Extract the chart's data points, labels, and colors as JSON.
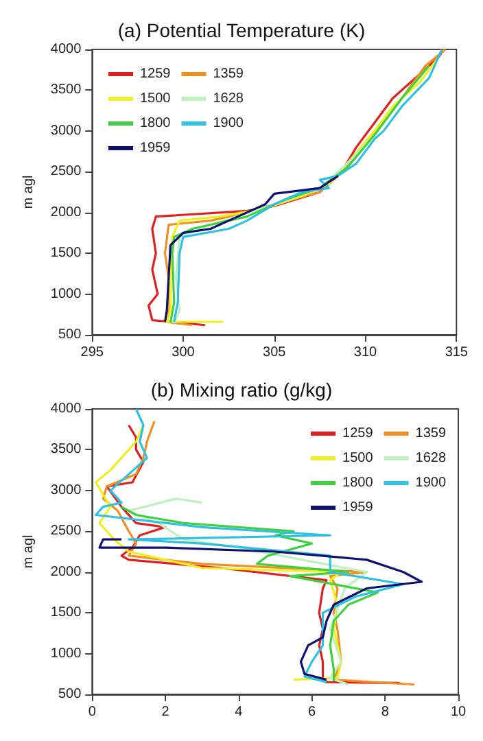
{
  "chart_data": [
    {
      "type": "line",
      "title": "(a) Potential Temperature (K)",
      "ylabel": "m agl",
      "xlim": [
        295,
        315
      ],
      "xticks": [
        295,
        300,
        305,
        310,
        315
      ],
      "ylim": [
        500,
        4000
      ],
      "yticks": [
        500,
        1000,
        1500,
        2000,
        2500,
        3000,
        3500,
        4000
      ],
      "grid": false,
      "legend": "top left",
      "series": [
        {
          "name": "1259",
          "color": "#e02020",
          "x": [
            301.2,
            298.3,
            298.1,
            298.6,
            298.3,
            298.5,
            298.3,
            298.5,
            303.5,
            305,
            307.5,
            308.7,
            309.5,
            310.5,
            311.5,
            313,
            314,
            314.3
          ],
          "values": [
            620,
            680,
            860,
            1000,
            1300,
            1500,
            1800,
            1950,
            2020,
            2080,
            2250,
            2500,
            2800,
            3100,
            3400,
            3700,
            3900,
            4000
          ]
        },
        {
          "name": "1359",
          "color": "#f09020",
          "x": [
            300.5,
            299,
            299.2,
            299.2,
            299,
            299.2,
            301.5,
            303.5,
            305,
            307.5,
            308.5,
            309.8,
            311,
            312,
            313.3,
            314.4
          ],
          "values": [
            620,
            660,
            800,
            1200,
            1500,
            1850,
            1900,
            2000,
            2100,
            2250,
            2450,
            2800,
            3100,
            3400,
            3800,
            4000
          ]
        },
        {
          "name": "1500",
          "color": "#f0f020",
          "x": [
            302.2,
            299.1,
            299.3,
            299.3,
            299.4,
            299.8,
            302,
            304.5,
            306.5,
            308,
            309,
            310.5,
            311.5,
            313,
            314
          ],
          "values": [
            660,
            660,
            800,
            1200,
            1700,
            1900,
            1950,
            2050,
            2200,
            2350,
            2600,
            3000,
            3300,
            3600,
            3900
          ]
        },
        {
          "name": "1628",
          "color": "#c0f0c0",
          "x": [
            299.5,
            299.8,
            299.6,
            299.8,
            301.5,
            305,
            307.5,
            309,
            310.5,
            312,
            313.5
          ],
          "values": [
            640,
            800,
            1200,
            1700,
            1850,
            2100,
            2300,
            2600,
            2950,
            3400,
            3800
          ]
        },
        {
          "name": "1800",
          "color": "#40d040",
          "x": [
            299.3,
            299.5,
            299.4,
            299.5,
            300.5,
            303.5,
            305.5,
            307.5,
            309,
            310.5,
            312,
            313.5
          ],
          "values": [
            650,
            900,
            1500,
            1700,
            1800,
            1950,
            2150,
            2300,
            2550,
            2950,
            3400,
            3800
          ]
        },
        {
          "name": "1900",
          "color": "#30c0e0",
          "x": [
            299.5,
            299.7,
            299.8,
            300,
            302.5,
            303.5,
            305,
            306.5,
            308,
            307.5,
            308.5,
            309.5,
            310.5,
            311,
            312,
            313.5,
            314.2
          ],
          "values": [
            660,
            900,
            1500,
            1700,
            1800,
            1900,
            2100,
            2250,
            2300,
            2400,
            2450,
            2600,
            2900,
            3000,
            3300,
            3650,
            4000
          ]
        },
        {
          "name": "1959",
          "color": "#101070",
          "x": [
            299,
            299.1,
            299.2,
            299.3,
            300,
            301.5,
            303,
            304.5,
            305,
            307.5,
            308.5
          ],
          "values": [
            660,
            800,
            1200,
            1600,
            1750,
            1800,
            1950,
            2100,
            2230,
            2300,
            2450
          ]
        }
      ]
    },
    {
      "type": "line",
      "title": "(b) Mixing ratio (g/kg)",
      "ylabel": "m agl",
      "xlim": [
        0,
        10
      ],
      "xticks": [
        0,
        2,
        4,
        6,
        8,
        10
      ],
      "ylim": [
        500,
        4000
      ],
      "yticks": [
        500,
        1000,
        1500,
        2000,
        2500,
        3000,
        3500,
        4000
      ],
      "grid": false,
      "legend": "top right",
      "series": [
        {
          "name": "1259",
          "color": "#e02020",
          "x": [
            8.4,
            6.4,
            6.3,
            6.3,
            6.2,
            6.3,
            6.2,
            6.3,
            6.4,
            3.5,
            1.0,
            0.8,
            1.1,
            1.3,
            2,
            1.2,
            0.8,
            0.4,
            1.1,
            1.4,
            1.2,
            1.2,
            1.0
          ],
          "values": [
            640,
            650,
            700,
            900,
            1100,
            1300,
            1500,
            1800,
            1900,
            2050,
            2150,
            2200,
            2300,
            2450,
            2550,
            2600,
            2800,
            3050,
            3100,
            3350,
            3500,
            3650,
            3800
          ]
        },
        {
          "name": "1359",
          "color": "#f09020",
          "x": [
            8.8,
            6.6,
            6.8,
            6.7,
            6.6,
            6.7,
            6.5,
            7.5,
            3.0,
            1.0,
            1.2,
            1.0,
            0.7,
            0.3,
            0.4,
            1.2,
            1.4,
            1.5,
            1.7
          ],
          "values": [
            620,
            680,
            900,
            1300,
            1500,
            1800,
            1950,
            2000,
            2100,
            2200,
            2350,
            2500,
            2750,
            2900,
            3050,
            3200,
            3400,
            3600,
            3850
          ]
        },
        {
          "name": "1500",
          "color": "#f0f020",
          "x": [
            5.5,
            6.7,
            6.8,
            6.6,
            6.7,
            6.5,
            6.8,
            3.0,
            1.0,
            0.6,
            0.2,
            0.5,
            0.1,
            0.5,
            0.8,
            1.2,
            1.4
          ],
          "values": [
            680,
            700,
            900,
            1300,
            1600,
            1900,
            2000,
            2050,
            2250,
            2400,
            2600,
            2800,
            3100,
            3250,
            3400,
            3600,
            3800
          ]
        },
        {
          "name": "1628",
          "color": "#c0f0c0",
          "x": [
            7,
            6.5,
            6.8,
            6.5,
            6.9,
            7.5,
            4,
            2.5,
            1.8,
            1.0,
            2.3,
            3.0
          ],
          "values": [
            620,
            700,
            900,
            1300,
            1800,
            2000,
            2300,
            2400,
            2600,
            2750,
            2900,
            2850
          ]
        },
        {
          "name": "1800",
          "color": "#40d040",
          "x": [
            6.6,
            6.6,
            6.5,
            6.6,
            7,
            7.8,
            5.4,
            7,
            4.5,
            4.8,
            6,
            5,
            5.5,
            2.5,
            1.2,
            0.8
          ],
          "values": [
            660,
            800,
            1100,
            1400,
            1600,
            1750,
            1950,
            2000,
            2100,
            2200,
            2350,
            2450,
            2500,
            2600,
            2700,
            2800
          ]
        },
        {
          "name": "1900",
          "color": "#30c0e0",
          "x": [
            6.4,
            5.8,
            6,
            6.3,
            6.3,
            7.2,
            8.5,
            6.5,
            6.5,
            3.0,
            1.0,
            6.5,
            3.0,
            0.1,
            0.3,
            0.8,
            0.5,
            1.0,
            1.5,
            1.3,
            1.4,
            1.2
          ],
          "values": [
            650,
            720,
            900,
            1100,
            1500,
            1700,
            1850,
            2000,
            2200,
            2350,
            2400,
            2450,
            2550,
            2700,
            2800,
            2850,
            3000,
            3200,
            3400,
            3600,
            3800,
            4000
          ]
        },
        {
          "name": "1959",
          "color": "#101070",
          "x": [
            6.4,
            5.8,
            5.7,
            5.9,
            6.3,
            6.4,
            6.6,
            7.5,
            9.0,
            8.5,
            7.5,
            5,
            2,
            0.2,
            0.3,
            0.8
          ],
          "values": [
            680,
            750,
            900,
            1100,
            1200,
            1400,
            1600,
            1800,
            1880,
            2000,
            2150,
            2250,
            2300,
            2300,
            2400,
            2400
          ]
        }
      ]
    }
  ]
}
